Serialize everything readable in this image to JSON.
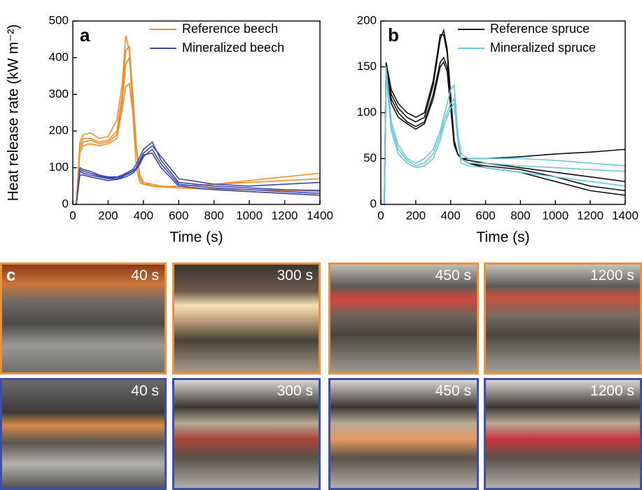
{
  "chart_data": [
    {
      "type": "line",
      "panel_label": "a",
      "ylabel": "Heat release rate (kW m⁻²)",
      "xlabel": "Time (s)",
      "x": [
        20,
        40,
        60,
        100,
        150,
        200,
        250,
        280,
        300,
        320,
        340,
        360,
        380,
        400,
        450,
        500,
        600,
        800,
        1000,
        1200,
        1400
      ],
      "xlim": [
        0,
        1400
      ],
      "xticks": [
        0,
        200,
        400,
        600,
        800,
        1000,
        1200,
        1400
      ],
      "ylim": [
        0,
        500
      ],
      "yticks": [
        0,
        100,
        200,
        300,
        400,
        500
      ],
      "series": [
        {
          "name": "Reference beech",
          "color": "#f28c28",
          "runs": [
            {
              "values": [
                0,
                170,
                190,
                195,
                180,
                185,
                230,
                330,
                460,
                420,
                250,
                100,
                60,
                55,
                50,
                48,
                45,
                42,
                40,
                38,
                35
              ]
            },
            {
              "values": [
                0,
                160,
                180,
                180,
                170,
                175,
                200,
                300,
                420,
                430,
                300,
                150,
                70,
                55,
                50,
                48,
                50,
                55,
                60,
                65,
                70
              ]
            },
            {
              "values": [
                0,
                150,
                170,
                175,
                165,
                170,
                190,
                280,
                380,
                400,
                300,
                160,
                80,
                60,
                55,
                50,
                45,
                40,
                35,
                30,
                25
              ]
            },
            {
              "values": [
                0,
                140,
                160,
                165,
                160,
                165,
                180,
                260,
                320,
                330,
                250,
                150,
                80,
                60,
                50,
                48,
                50,
                55,
                65,
                75,
                85
              ]
            }
          ]
        },
        {
          "name": "Mineralized beech",
          "color": "#3b4aa8",
          "runs": [
            {
              "values": [
                0,
                100,
                95,
                90,
                80,
                75,
                75,
                80,
                85,
                90,
                95,
                110,
                130,
                150,
                170,
                120,
                60,
                50,
                45,
                40,
                38
              ]
            },
            {
              "values": [
                0,
                90,
                85,
                80,
                75,
                70,
                70,
                75,
                80,
                85,
                90,
                100,
                120,
                140,
                160,
                130,
                70,
                55,
                50,
                55,
                60
              ]
            },
            {
              "values": [
                0,
                80,
                80,
                75,
                70,
                65,
                68,
                72,
                75,
                80,
                85,
                95,
                110,
                130,
                150,
                110,
                55,
                45,
                40,
                35,
                30
              ]
            },
            {
              "values": [
                0,
                95,
                90,
                85,
                78,
                72,
                74,
                78,
                82,
                86,
                90,
                100,
                115,
                135,
                140,
                100,
                50,
                40,
                35,
                30,
                25
              ]
            }
          ]
        }
      ]
    },
    {
      "type": "line",
      "panel_label": "b",
      "xlabel": "Time (s)",
      "x": [
        20,
        30,
        40,
        60,
        100,
        150,
        200,
        250,
        300,
        340,
        360,
        380,
        400,
        420,
        440,
        460,
        500,
        600,
        800,
        1000,
        1200,
        1400
      ],
      "xlim": [
        0,
        1400
      ],
      "xticks": [
        0,
        200,
        400,
        600,
        800,
        1000,
        1200,
        1400
      ],
      "ylim": [
        0,
        200
      ],
      "yticks": [
        0,
        50,
        100,
        150,
        200
      ],
      "series": [
        {
          "name": "Reference spruce",
          "color": "#111111",
          "runs": [
            {
              "values": [
                0,
                150,
                140,
                120,
                105,
                95,
                90,
                95,
                130,
                180,
                190,
                170,
                120,
                70,
                55,
                50,
                50,
                50,
                52,
                55,
                57,
                60
              ]
            },
            {
              "values": [
                0,
                155,
                145,
                125,
                110,
                100,
                95,
                100,
                135,
                185,
                185,
                165,
                115,
                70,
                55,
                50,
                48,
                45,
                40,
                35,
                30,
                25
              ]
            },
            {
              "values": [
                0,
                145,
                135,
                115,
                100,
                90,
                85,
                90,
                120,
                155,
                160,
                150,
                110,
                65,
                55,
                50,
                45,
                42,
                38,
                30,
                20,
                15
              ]
            },
            {
              "values": [
                0,
                140,
                130,
                110,
                95,
                88,
                82,
                88,
                115,
                150,
                155,
                145,
                105,
                65,
                55,
                50,
                45,
                40,
                35,
                25,
                15,
                10
              ]
            }
          ]
        },
        {
          "name": "Mineralized spruce",
          "color": "#6cc7dc",
          "runs": [
            {
              "values": [
                0,
                150,
                130,
                90,
                65,
                50,
                45,
                50,
                60,
                80,
                95,
                110,
                125,
                130,
                80,
                55,
                50,
                50,
                50,
                48,
                45,
                42
              ]
            },
            {
              "values": [
                0,
                145,
                125,
                85,
                60,
                48,
                42,
                45,
                55,
                75,
                90,
                100,
                110,
                115,
                75,
                50,
                45,
                45,
                42,
                40,
                38,
                36
              ]
            },
            {
              "values": [
                0,
                140,
                120,
                80,
                55,
                45,
                40,
                42,
                50,
                70,
                85,
                95,
                105,
                110,
                70,
                45,
                42,
                40,
                35,
                30,
                25,
                20
              ]
            }
          ]
        }
      ]
    }
  ],
  "photos": {
    "label": "c",
    "rows": [
      {
        "color": "#e8923a",
        "panels": [
          {
            "label": "40 s"
          },
          {
            "label": "300 s"
          },
          {
            "label": "450 s"
          },
          {
            "label": "1200 s"
          }
        ]
      },
      {
        "color": "#3f4fa5",
        "panels": [
          {
            "label": "40 s"
          },
          {
            "label": "300 s"
          },
          {
            "label": "450 s"
          },
          {
            "label": "1200 s"
          }
        ]
      }
    ]
  }
}
